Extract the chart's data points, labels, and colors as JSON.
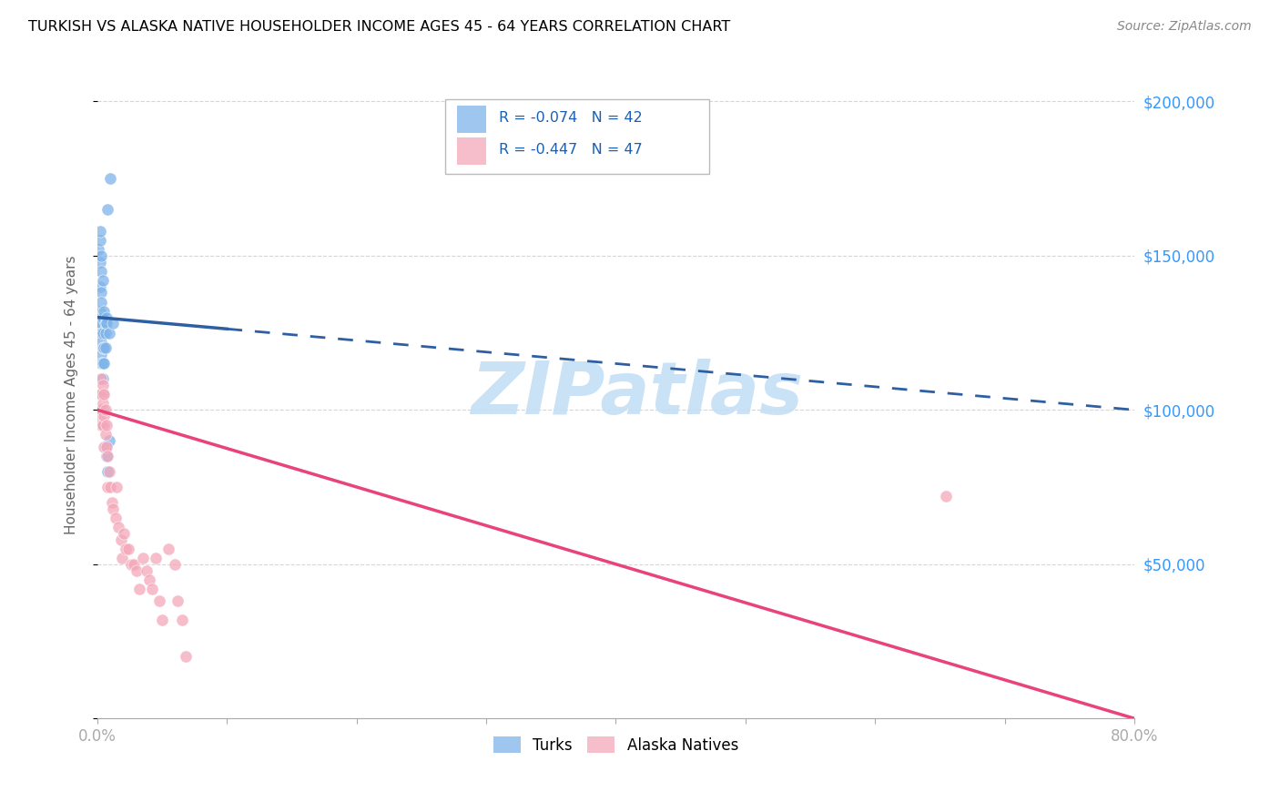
{
  "title": "TURKISH VS ALASKA NATIVE HOUSEHOLDER INCOME AGES 45 - 64 YEARS CORRELATION CHART",
  "source": "Source: ZipAtlas.com",
  "ylabel": "Householder Income Ages 45 - 64 years",
  "ytick_values": [
    50000,
    100000,
    150000,
    200000
  ],
  "ytick_labels": [
    "$50,000",
    "$100,000",
    "$150,000",
    "$200,000"
  ],
  "legend_turks_r": "R = -0.074",
  "legend_turks_n": "N = 42",
  "legend_alaska_r": "R = -0.447",
  "legend_alaska_n": "N = 47",
  "turks_color": "#7eb4ea",
  "alaska_color": "#f4a7b9",
  "trendline_turks_color": "#2e5fa3",
  "trendline_alaska_color": "#e8437a",
  "watermark_color": "#c5dff5",
  "turks_x": [
    0.001,
    0.002,
    0.002,
    0.002,
    0.002,
    0.002,
    0.002,
    0.003,
    0.003,
    0.003,
    0.003,
    0.003,
    0.003,
    0.003,
    0.003,
    0.003,
    0.003,
    0.004,
    0.004,
    0.004,
    0.004,
    0.004,
    0.004,
    0.004,
    0.004,
    0.005,
    0.005,
    0.005,
    0.005,
    0.006,
    0.006,
    0.006,
    0.006,
    0.007,
    0.007,
    0.007,
    0.008,
    0.008,
    0.009,
    0.009,
    0.01,
    0.012
  ],
  "turks_y": [
    152000,
    155000,
    158000,
    148000,
    140000,
    132000,
    128000,
    150000,
    145000,
    138000,
    135000,
    130000,
    128000,
    125000,
    122000,
    118000,
    115000,
    142000,
    130000,
    125000,
    120000,
    115000,
    110000,
    105000,
    100000,
    132000,
    120000,
    115000,
    95000,
    128000,
    125000,
    120000,
    88000,
    130000,
    128000,
    85000,
    165000,
    80000,
    125000,
    90000,
    175000,
    128000
  ],
  "alaska_x": [
    0.002,
    0.002,
    0.003,
    0.003,
    0.003,
    0.003,
    0.004,
    0.004,
    0.004,
    0.005,
    0.005,
    0.005,
    0.006,
    0.006,
    0.007,
    0.007,
    0.008,
    0.008,
    0.009,
    0.01,
    0.011,
    0.012,
    0.014,
    0.015,
    0.016,
    0.018,
    0.019,
    0.02,
    0.022,
    0.024,
    0.026,
    0.028,
    0.03,
    0.032,
    0.035,
    0.038,
    0.04,
    0.042,
    0.045,
    0.048,
    0.05,
    0.055,
    0.06,
    0.062,
    0.065,
    0.655,
    0.068
  ],
  "alaska_y": [
    105000,
    98000,
    110000,
    105000,
    100000,
    95000,
    108000,
    102000,
    95000,
    105000,
    98000,
    88000,
    100000,
    92000,
    95000,
    88000,
    85000,
    75000,
    80000,
    75000,
    70000,
    68000,
    65000,
    75000,
    62000,
    58000,
    52000,
    60000,
    55000,
    55000,
    50000,
    50000,
    48000,
    42000,
    52000,
    48000,
    45000,
    42000,
    52000,
    38000,
    32000,
    55000,
    50000,
    38000,
    32000,
    72000,
    20000
  ],
  "xmin": 0.0,
  "xmax": 0.8,
  "ymin": 0,
  "ymax": 210000,
  "trend_x_start": 0.0,
  "trend_x_end": 0.8
}
